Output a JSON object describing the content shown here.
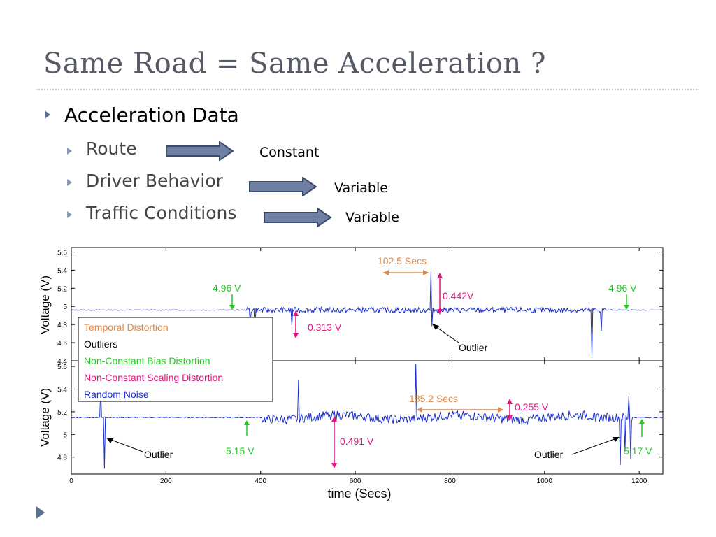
{
  "slide": {
    "title": "Same Road = Same Acceleration ?",
    "bullet_main": "Acceleration Data",
    "items": [
      {
        "label": "Route",
        "result": "Constant"
      },
      {
        "label": "Driver Behavior",
        "result": "Variable"
      },
      {
        "label": "Traffic Conditions",
        "result": "Variable"
      }
    ]
  },
  "chart_data": [
    {
      "type": "line",
      "ylabel": "Voltage (V)",
      "ylim": [
        4.4,
        5.65
      ],
      "yticks": [
        "5.6",
        "5.4",
        "5.2",
        "5",
        "4.8",
        "4.6",
        "4.4"
      ],
      "xlim": [
        0,
        1250
      ],
      "baseline": 4.96,
      "annotations": {
        "bias_left": "4.96 V",
        "bias_right": "4.96 V",
        "temporal": "102.5 Secs",
        "scaling_top": "0.442V",
        "scaling_bottom": "0.313 V",
        "outlier": "Outlier"
      }
    },
    {
      "type": "line",
      "ylabel": "Voltage (V)",
      "xlabel": "time (Secs)",
      "ylim": [
        4.65,
        5.65
      ],
      "yticks": [
        "5.6",
        "5.4",
        "5.2",
        "5",
        "4.8"
      ],
      "xlim": [
        0,
        1250
      ],
      "xticks": [
        "0",
        "200",
        "400",
        "600",
        "800",
        "1000",
        "1200"
      ],
      "baseline": 5.15,
      "annotations": {
        "bias_left": "5.15 V",
        "bias_right": "5.17 V",
        "temporal": "185.2 Secs",
        "scaling_top": "0.255 V",
        "scaling_bottom": "0.491 V",
        "outlier_left": "Outlier",
        "outlier_right": "Outlier"
      }
    }
  ],
  "legend": [
    {
      "label": "Temporal Distortion",
      "color": "#e08a4a"
    },
    {
      "label": "Outliers",
      "color": "#000000"
    },
    {
      "label": "Non-Constant Bias Distortion",
      "color": "#22cc22"
    },
    {
      "label": "Non-Constant Scaling Distortion",
      "color": "#e0157f"
    },
    {
      "label": "Random Noise",
      "color": "#1a2fd0"
    }
  ],
  "colors": {
    "signal": "#1a2fd0",
    "temporal": "#e08a4a",
    "bias": "#22cc22",
    "scaling": "#e0157f",
    "outlier": "#000000",
    "arrow_fill": "#6f7fa3",
    "arrow_stroke": "#3c4a6b"
  }
}
